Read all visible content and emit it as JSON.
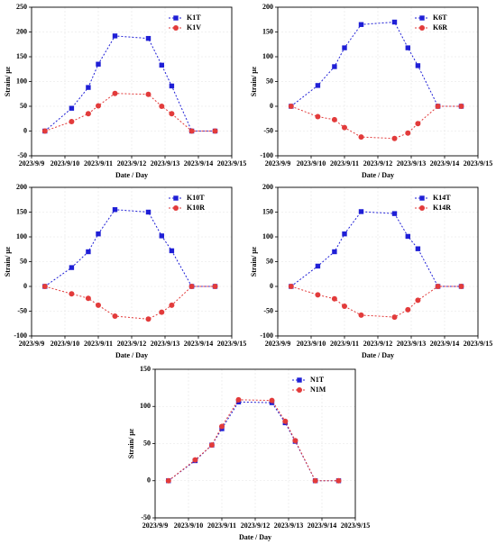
{
  "chart_data": [
    {
      "type": "line",
      "xlabel": "Date / Day",
      "ylabel": "Strain/ με",
      "grid": true,
      "legend": "upper right",
      "x": [
        9.4,
        10.2,
        10.7,
        11.0,
        11.5,
        12.5,
        12.9,
        13.2,
        13.8,
        14.5
      ],
      "xlim": [
        9,
        15
      ],
      "xticks": [
        {
          "value": 9,
          "label": "2023/9/9"
        },
        {
          "value": 10,
          "label": "2023/9/10"
        },
        {
          "value": 11,
          "label": "2023/9/11"
        },
        {
          "value": 12,
          "label": "2023/9/12"
        },
        {
          "value": 13,
          "label": "2023/9/13"
        },
        {
          "value": 14,
          "label": "2023/9/14"
        },
        {
          "value": 15,
          "label": "2023/9/15"
        }
      ],
      "ylim": [
        -50,
        250
      ],
      "yticks": [
        -50,
        0,
        50,
        100,
        150,
        200,
        250
      ],
      "series": [
        {
          "name": "K1T",
          "color": "#1f1fd6",
          "marker": "square",
          "values": [
            0,
            46,
            88,
            135,
            192,
            187,
            133,
            91,
            0,
            0
          ]
        },
        {
          "name": "K1V",
          "color": "#e23b3b",
          "marker": "circle",
          "values": [
            0,
            19,
            35,
            51,
            76,
            74,
            50,
            35,
            0,
            0
          ]
        }
      ]
    },
    {
      "type": "line",
      "xlabel": "Date / Day",
      "ylabel": "Strain/ με",
      "grid": true,
      "legend": "upper right",
      "x": [
        9.4,
        10.2,
        10.7,
        11.0,
        11.5,
        12.5,
        12.9,
        13.2,
        13.8,
        14.5
      ],
      "xlim": [
        9,
        15
      ],
      "xticks": [
        {
          "value": 9,
          "label": "2023/9/9"
        },
        {
          "value": 10,
          "label": "2023/9/10"
        },
        {
          "value": 11,
          "label": "2023/9/11"
        },
        {
          "value": 12,
          "label": "2023/9/12"
        },
        {
          "value": 13,
          "label": "2023/9/13"
        },
        {
          "value": 14,
          "label": "2023/9/14"
        },
        {
          "value": 15,
          "label": "2023/9/15"
        }
      ],
      "ylim": [
        -100,
        200
      ],
      "yticks": [
        -100,
        -50,
        0,
        50,
        100,
        150,
        200
      ],
      "series": [
        {
          "name": "K6T",
          "color": "#1f1fd6",
          "marker": "square",
          "values": [
            0,
            42,
            80,
            118,
            165,
            170,
            118,
            82,
            0,
            0
          ]
        },
        {
          "name": "K6R",
          "color": "#e23b3b",
          "marker": "circle",
          "values": [
            0,
            -21,
            -27,
            -43,
            -62,
            -65,
            -54,
            -35,
            0,
            0
          ]
        }
      ]
    },
    {
      "type": "line",
      "xlabel": "Date / Day",
      "ylabel": "Strain/ με",
      "grid": true,
      "legend": "upper right",
      "x": [
        9.4,
        10.2,
        10.7,
        11.0,
        11.5,
        12.5,
        12.9,
        13.2,
        13.8,
        14.5
      ],
      "xlim": [
        9,
        15
      ],
      "xticks": [
        {
          "value": 9,
          "label": "2023/9/9"
        },
        {
          "value": 10,
          "label": "2023/9/10"
        },
        {
          "value": 11,
          "label": "2023/9/11"
        },
        {
          "value": 12,
          "label": "2023/9/12"
        },
        {
          "value": 13,
          "label": "2023/9/13"
        },
        {
          "value": 14,
          "label": "2023/9/14"
        },
        {
          "value": 15,
          "label": "2023/9/15"
        }
      ],
      "ylim": [
        -100,
        200
      ],
      "yticks": [
        -100,
        -50,
        0,
        50,
        100,
        150,
        200
      ],
      "series": [
        {
          "name": "K10T",
          "color": "#1f1fd6",
          "marker": "square",
          "values": [
            0,
            38,
            70,
            106,
            155,
            150,
            102,
            72,
            0,
            0
          ]
        },
        {
          "name": "K10R",
          "color": "#e23b3b",
          "marker": "circle",
          "values": [
            0,
            -15,
            -24,
            -38,
            -60,
            -66,
            -52,
            -38,
            0,
            0
          ]
        }
      ]
    },
    {
      "type": "line",
      "xlabel": "Date / Day",
      "ylabel": "Strain/ με",
      "grid": true,
      "legend": "upper right",
      "x": [
        9.4,
        10.2,
        10.7,
        11.0,
        11.5,
        12.5,
        12.9,
        13.2,
        13.8,
        14.5
      ],
      "xlim": [
        9,
        15
      ],
      "xticks": [
        {
          "value": 9,
          "label": "2023/9/9"
        },
        {
          "value": 10,
          "label": "2023/9/10"
        },
        {
          "value": 11,
          "label": "2023/9/11"
        },
        {
          "value": 12,
          "label": "2023/9/12"
        },
        {
          "value": 13,
          "label": "2023/9/13"
        },
        {
          "value": 14,
          "label": "2023/9/14"
        },
        {
          "value": 15,
          "label": "2023/9/15"
        }
      ],
      "ylim": [
        -100,
        200
      ],
      "yticks": [
        -100,
        -50,
        0,
        50,
        100,
        150,
        200
      ],
      "series": [
        {
          "name": "K14T",
          "color": "#1f1fd6",
          "marker": "square",
          "values": [
            0,
            41,
            70,
            106,
            151,
            147,
            101,
            76,
            0,
            0
          ]
        },
        {
          "name": "K14R",
          "color": "#e23b3b",
          "marker": "circle",
          "values": [
            0,
            -17,
            -25,
            -40,
            -58,
            -62,
            -47,
            -28,
            0,
            0
          ]
        }
      ]
    },
    {
      "type": "line",
      "xlabel": "Date / Day",
      "ylabel": "Strain/ με",
      "grid": true,
      "legend": "upper right",
      "x": [
        9.4,
        10.2,
        10.7,
        11.0,
        11.5,
        12.5,
        12.9,
        13.2,
        13.8,
        14.5
      ],
      "xlim": [
        9,
        15
      ],
      "xticks": [
        {
          "value": 9,
          "label": "2023/9/9"
        },
        {
          "value": 10,
          "label": "2023/9/10"
        },
        {
          "value": 11,
          "label": "2023/9/11"
        },
        {
          "value": 12,
          "label": "2023/9/12"
        },
        {
          "value": 13,
          "label": "2023/9/13"
        },
        {
          "value": 14,
          "label": "2023/9/14"
        },
        {
          "value": 15,
          "label": "2023/9/15"
        }
      ],
      "ylim": [
        -50,
        150
      ],
      "yticks": [
        -50,
        0,
        50,
        100,
        150
      ],
      "series": [
        {
          "name": "N1T",
          "color": "#1f1fd6",
          "marker": "square",
          "values": [
            0,
            27,
            48,
            70,
            106,
            105,
            78,
            53,
            0,
            0
          ]
        },
        {
          "name": "N1M",
          "color": "#e23b3b",
          "marker": "circle",
          "values": [
            0,
            28,
            48,
            73,
            109,
            108,
            80,
            54,
            0,
            0
          ]
        }
      ]
    }
  ]
}
